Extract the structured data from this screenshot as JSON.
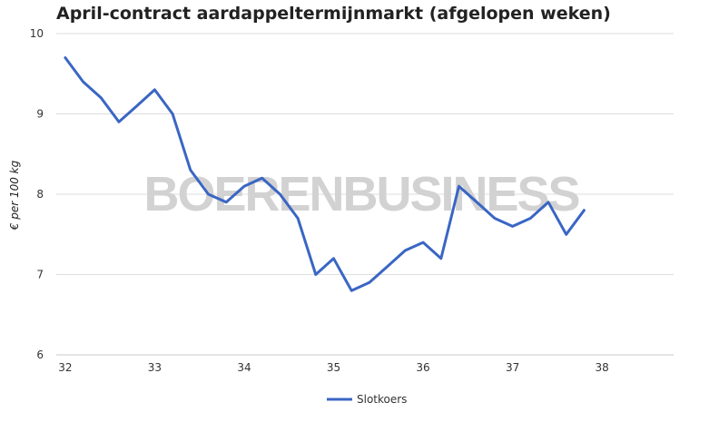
{
  "chart_data": {
    "type": "line",
    "title": "April-contract aardappeltermijnmarkt (afgelopen weken)",
    "ylabel": "€ per 100 kg",
    "xlabel": "",
    "xlim": [
      31.9,
      38.8
    ],
    "ylim": [
      6,
      10
    ],
    "x_ticks": [
      "32",
      "33",
      "34",
      "35",
      "36",
      "37",
      "38"
    ],
    "y_ticks": [
      "10",
      "9",
      "8",
      "7",
      "6"
    ],
    "grid": true,
    "legend_position": "bottom",
    "watermark": "BOERENBUSINESS",
    "series": [
      {
        "name": "Slotkoers",
        "color": "#3a66c4",
        "x": [
          32,
          32.2,
          32.4,
          32.6,
          32.8,
          33,
          33.2,
          33.4,
          33.6,
          33.8,
          34,
          34.2,
          34.4,
          34.6,
          34.8,
          35,
          35.2,
          35.4,
          35.6,
          35.8,
          36,
          36.2,
          36.4,
          36.6,
          36.8,
          37,
          37.2,
          37.4,
          37.6,
          37.8
        ],
        "values": [
          9.7,
          9.4,
          9.2,
          8.9,
          9.1,
          9.3,
          9.0,
          8.3,
          8.0,
          7.9,
          8.1,
          8.2,
          8.0,
          7.7,
          7.0,
          7.2,
          6.8,
          6.9,
          7.1,
          7.3,
          7.4,
          7.2,
          8.1,
          7.9,
          7.7,
          7.6,
          7.7,
          7.9,
          7.5,
          7.8
        ]
      }
    ]
  }
}
